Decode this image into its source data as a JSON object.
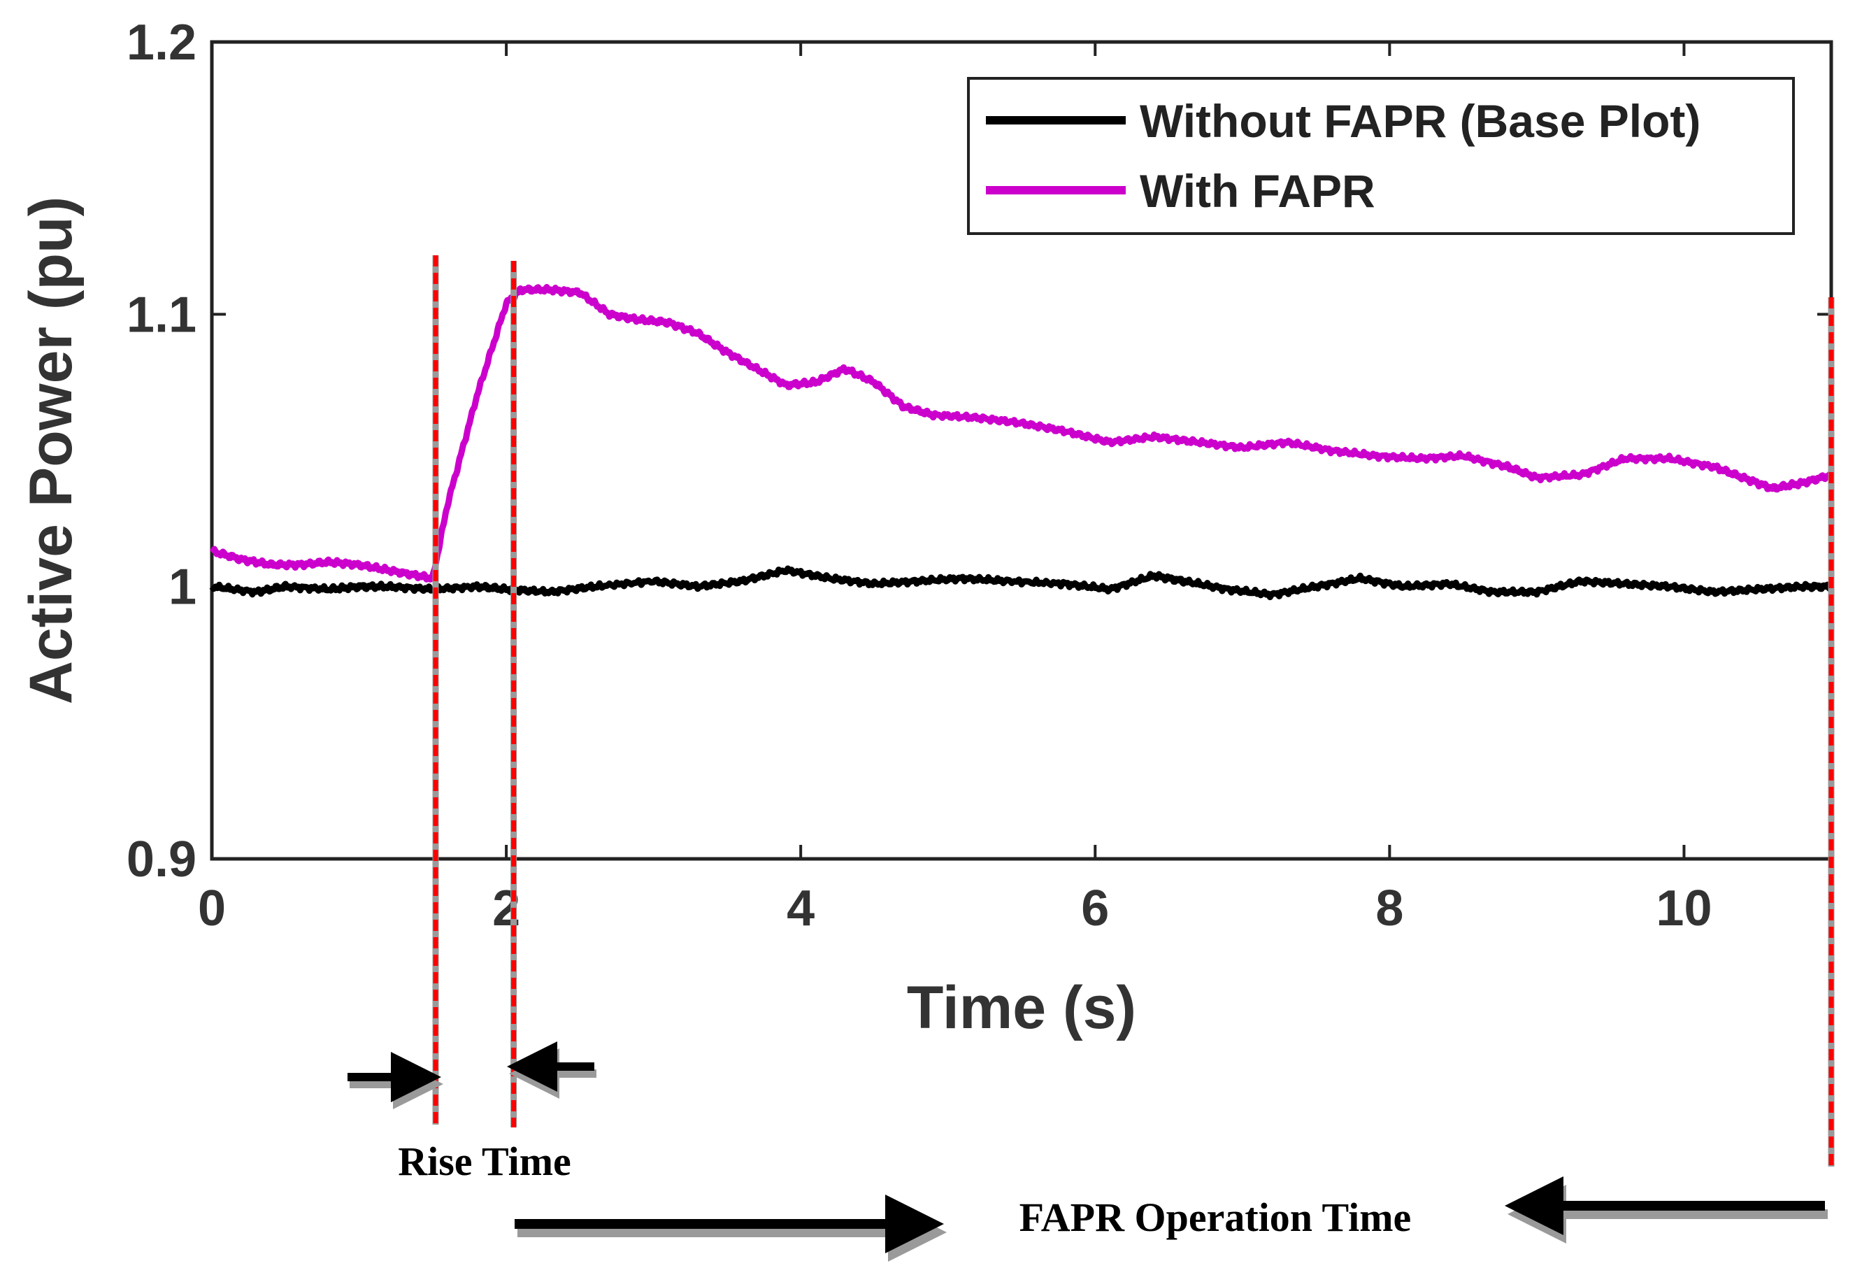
{
  "chart_data": {
    "type": "line",
    "title": "",
    "xlabel": "Time (s)",
    "ylabel": "Active Power (pu)",
    "xlim": [
      0,
      11
    ],
    "ylim": [
      0.9,
      1.2
    ],
    "xticks": [
      0,
      2,
      4,
      6,
      8,
      10
    ],
    "yticks": [
      0.9,
      1.0,
      1.1,
      1.2
    ],
    "xtick_labels": [
      "0",
      "2",
      "4",
      "6",
      "8",
      "10"
    ],
    "ytick_labels": [
      "0.9",
      "1",
      "1.1",
      "1.2"
    ],
    "grid": false,
    "legend": {
      "position": "top-right",
      "entries": [
        "Without FAPR (Base Plot)",
        "With FAPR"
      ]
    },
    "series": [
      {
        "name": "Without FAPR (Base Plot)",
        "color": "#000000",
        "x": [
          0,
          0.3,
          0.5,
          0.8,
          1.0,
          1.2,
          1.5,
          1.8,
          2.0,
          2.3,
          2.6,
          3.0,
          3.3,
          3.6,
          3.9,
          4.2,
          4.5,
          4.8,
          5.1,
          5.4,
          5.8,
          6.1,
          6.4,
          6.6,
          6.9,
          7.2,
          7.5,
          7.8,
          8.1,
          8.4,
          8.7,
          9.0,
          9.3,
          9.6,
          9.9,
          10.2,
          10.5,
          10.8,
          11.0
        ],
        "values": [
          1.0,
          0.998,
          1.0,
          0.999,
          1.0,
          1.0,
          0.999,
          1.0,
          0.999,
          0.998,
          1.0,
          1.002,
          1.0,
          1.002,
          1.006,
          1.003,
          1.001,
          1.002,
          1.003,
          1.002,
          1.001,
          0.999,
          1.004,
          1.002,
          0.999,
          0.997,
          1.0,
          1.003,
          1.0,
          1.001,
          0.998,
          0.998,
          1.002,
          1.001,
          1.0,
          0.998,
          0.999,
          1.0,
          1.0
        ]
      },
      {
        "name": "With FAPR",
        "color": "#cc00cc",
        "x": [
          0,
          0.2,
          0.4,
          0.6,
          0.8,
          1.0,
          1.2,
          1.4,
          1.5,
          1.6,
          1.8,
          2.0,
          2.1,
          2.3,
          2.5,
          2.7,
          2.9,
          3.1,
          3.3,
          3.5,
          3.7,
          3.9,
          4.1,
          4.3,
          4.5,
          4.7,
          4.9,
          5.2,
          5.5,
          5.8,
          6.1,
          6.4,
          6.7,
          7.0,
          7.3,
          7.6,
          7.9,
          8.2,
          8.5,
          8.8,
          9.0,
          9.3,
          9.6,
          9.9,
          10.2,
          10.4,
          10.6,
          10.8,
          11.0
        ],
        "values": [
          1.013,
          1.01,
          1.008,
          1.008,
          1.009,
          1.008,
          1.006,
          1.004,
          1.003,
          1.03,
          1.07,
          1.104,
          1.109,
          1.109,
          1.108,
          1.1,
          1.098,
          1.097,
          1.093,
          1.086,
          1.08,
          1.074,
          1.075,
          1.08,
          1.075,
          1.066,
          1.063,
          1.062,
          1.06,
          1.057,
          1.053,
          1.055,
          1.053,
          1.051,
          1.053,
          1.05,
          1.048,
          1.047,
          1.048,
          1.044,
          1.04,
          1.041,
          1.047,
          1.047,
          1.044,
          1.04,
          1.036,
          1.038,
          1.041
        ]
      }
    ],
    "markers": [
      {
        "name": "rise-start-line",
        "x": 1.52,
        "color": "#ff0000"
      },
      {
        "name": "rise-end-line",
        "x": 2.05,
        "color": "#ff0000"
      },
      {
        "name": "operation-end-line",
        "x": 11.0,
        "color": "#ff0000"
      }
    ],
    "annotations": {
      "rise_time": "Rise Time",
      "operation_time": "FAPR Operation Time"
    }
  }
}
